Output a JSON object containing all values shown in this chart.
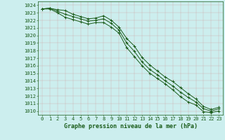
{
  "x": [
    0,
    1,
    2,
    3,
    4,
    5,
    6,
    7,
    8,
    9,
    10,
    11,
    12,
    13,
    14,
    15,
    16,
    17,
    18,
    19,
    20,
    21,
    22,
    23
  ],
  "line1": [
    1023.5,
    1023.6,
    1023.4,
    1023.3,
    1022.8,
    1022.5,
    1022.2,
    1022.3,
    1022.6,
    1022.0,
    1021.1,
    1019.6,
    1018.6,
    1017.1,
    1016.1,
    1015.3,
    1014.5,
    1013.9,
    1013.1,
    1012.3,
    1011.6,
    1010.6,
    1010.2,
    1010.5
  ],
  "line2": [
    1023.5,
    1023.6,
    1023.2,
    1022.8,
    1022.5,
    1022.2,
    1021.9,
    1022.0,
    1022.2,
    1021.6,
    1020.7,
    1019.0,
    1017.9,
    1016.5,
    1015.5,
    1014.8,
    1014.0,
    1013.3,
    1012.5,
    1011.8,
    1011.2,
    1010.3,
    1010.0,
    1010.3
  ],
  "line3": [
    1023.5,
    1023.5,
    1023.0,
    1022.4,
    1022.1,
    1021.8,
    1021.5,
    1021.7,
    1021.7,
    1021.1,
    1020.3,
    1018.4,
    1017.2,
    1016.0,
    1015.0,
    1014.3,
    1013.6,
    1012.8,
    1011.9,
    1011.2,
    1010.8,
    1009.9,
    1009.8,
    1010.0
  ],
  "line_color": "#1a5c1a",
  "marker": "+",
  "markersize": 3,
  "linewidth": 0.7,
  "xlabel": "Graphe pression niveau de la mer (hPa)",
  "ylim_min": 1009.5,
  "ylim_max": 1024.5,
  "xlim_min": -0.5,
  "xlim_max": 23.5,
  "background_color": "#cceeee",
  "grid_color": "#cc9999",
  "text_color": "#1a5c1a",
  "xlabel_fontsize": 6.0,
  "tick_fontsize": 5.0,
  "label_color": "#1a5c1a"
}
